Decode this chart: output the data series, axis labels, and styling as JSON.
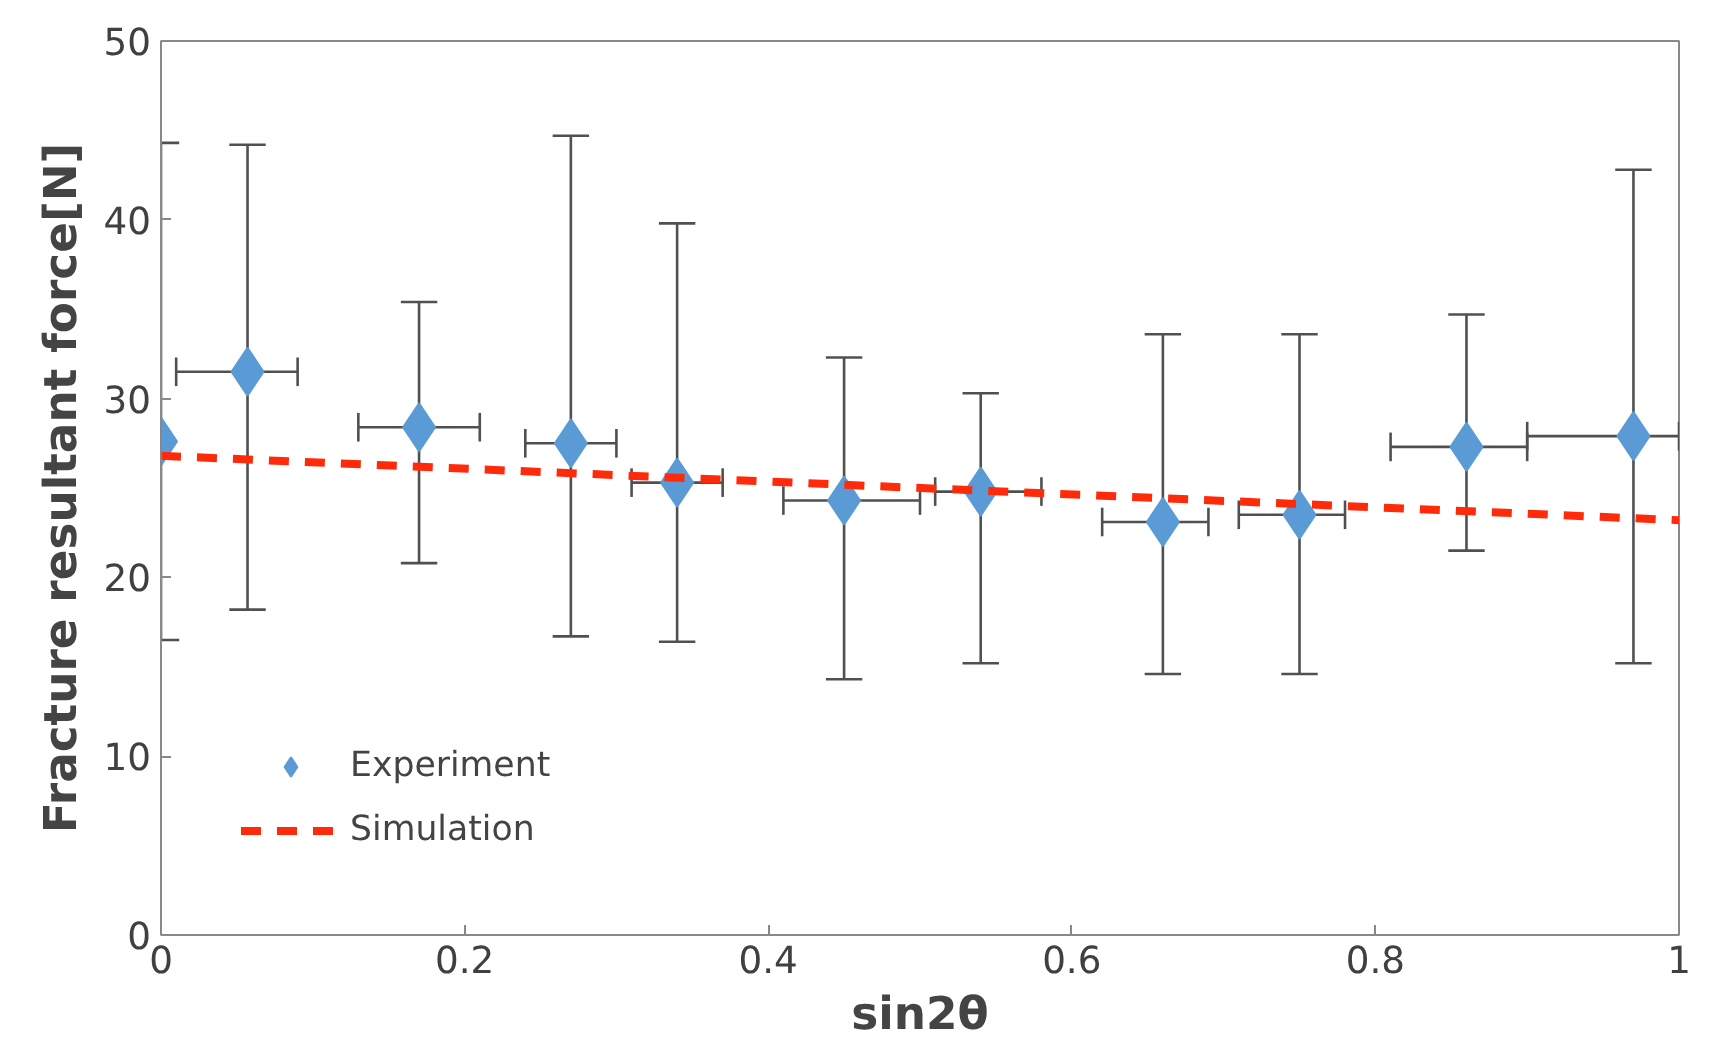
{
  "chart_data": {
    "type": "scatter",
    "xlabel": "sin2θ",
    "ylabel": "Fracture resultant force[N]",
    "xlim": [
      0,
      1
    ],
    "xticks": [
      0,
      0.2,
      0.4,
      0.6,
      0.8,
      1
    ],
    "ylim": [
      0,
      50
    ],
    "yticks": [
      0,
      10,
      20,
      30,
      40,
      50
    ],
    "grid": false,
    "legend": "bottom left",
    "series": [
      {
        "name": "Experiment",
        "marker": "diamond",
        "color": "#5b9bd5",
        "x": [
          0.0,
          0.057,
          0.17,
          0.27,
          0.34,
          0.45,
          0.54,
          0.66,
          0.75,
          0.86,
          0.97
        ],
        "values": [
          27.6,
          31.5,
          28.4,
          27.5,
          25.3,
          24.3,
          24.8,
          23.1,
          23.5,
          27.3,
          27.9
        ],
        "errors": [
          [
            16.5,
            44.3
          ],
          [
            18.2,
            44.2
          ],
          [
            20.8,
            35.4
          ],
          [
            16.7,
            44.7
          ],
          [
            16.4,
            39.8
          ],
          [
            14.3,
            32.3
          ],
          [
            15.2,
            30.3
          ],
          [
            14.6,
            33.6
          ],
          [
            14.6,
            33.6
          ],
          [
            21.5,
            34.7
          ],
          [
            15.2,
            42.8
          ]
        ],
        "xerrors": [
          null,
          [
            0.01,
            0.09
          ],
          [
            0.13,
            0.21
          ],
          [
            0.24,
            0.3
          ],
          [
            0.31,
            0.37
          ],
          [
            0.41,
            0.5
          ],
          [
            0.51,
            0.58
          ],
          [
            0.62,
            0.69
          ],
          [
            0.71,
            0.78
          ],
          [
            0.81,
            0.9
          ],
          [
            0.9,
            1.0
          ]
        ]
      },
      {
        "name": "Simulation",
        "type": "line",
        "line_style": "dashed",
        "marker": "none",
        "color": "#ff2a0a",
        "x": [
          0,
          1
        ],
        "values": [
          26.8,
          23.2
        ]
      }
    ]
  }
}
